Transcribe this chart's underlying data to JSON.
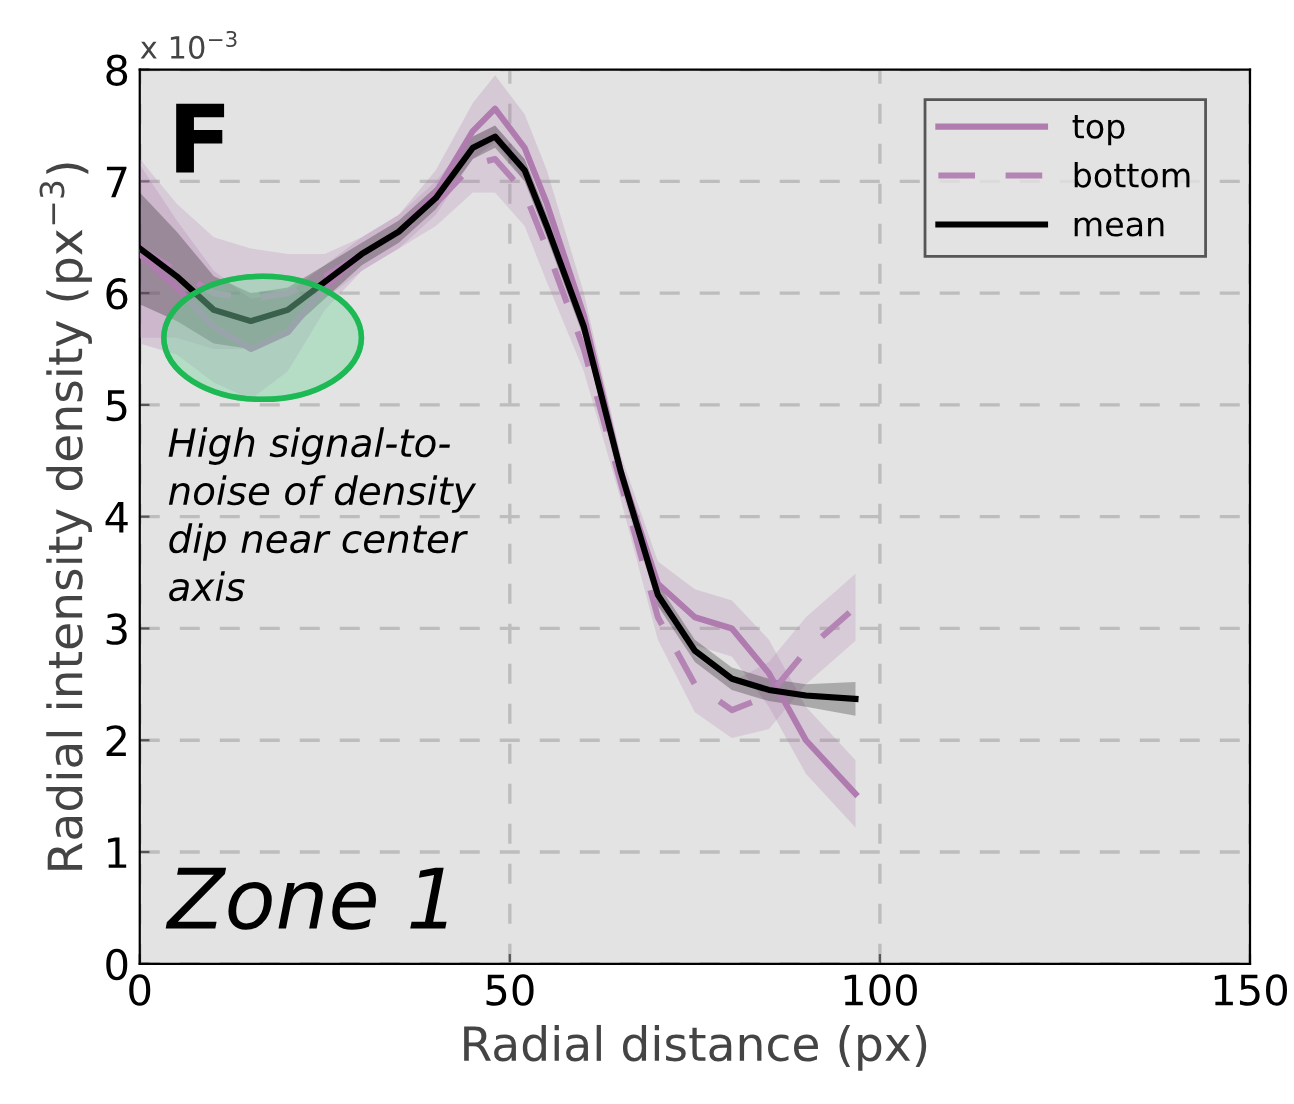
{
  "chart_data": {
    "type": "line",
    "xlabel": "Radial distance (px)",
    "ylabel": "Radial intensity density (px$^{−3}$)",
    "x": [
      0,
      5,
      10,
      15,
      20,
      25,
      30,
      35,
      40,
      45,
      48,
      52,
      55,
      60,
      65,
      70,
      75,
      80,
      85,
      90,
      96.7
    ],
    "xlim": [
      0,
      150
    ],
    "xticks": [
      0,
      50,
      100,
      150
    ],
    "ylim": [
      0,
      8
    ],
    "yticks": [
      0,
      1,
      2,
      3,
      4,
      5,
      6,
      7,
      8
    ],
    "grid": true,
    "legend": "top right",
    "marker": "none",
    "annotations": [
      "F",
      "Zone 1",
      "High signal-to-\nnoise of density\ndip near center\naxis",
      "x 10$^{−3}$"
    ],
    "series": [
      {
        "name": "top",
        "color": "#b07cb0",
        "line_style": "solid",
        "values": [
          6.35,
          6.05,
          5.7,
          5.5,
          5.65,
          6.05,
          6.35,
          6.55,
          6.9,
          7.45,
          7.65,
          7.3,
          6.8,
          5.8,
          4.4,
          3.4,
          3.1,
          3.0,
          2.6,
          2.0,
          1.52
        ],
        "lower": [
          5.55,
          5.45,
          5.2,
          5.05,
          5.3,
          5.85,
          6.2,
          6.4,
          6.7,
          7.2,
          7.35,
          7.0,
          6.5,
          5.6,
          4.25,
          3.2,
          2.85,
          2.75,
          2.3,
          1.7,
          1.22
        ],
        "upper": [
          7.15,
          6.65,
          6.2,
          5.95,
          6.0,
          6.25,
          6.5,
          6.7,
          7.1,
          7.7,
          7.95,
          7.6,
          7.1,
          6.0,
          4.55,
          3.6,
          3.35,
          3.25,
          2.9,
          2.3,
          1.82
        ]
      },
      {
        "name": "bottom",
        "color": "#b484b4",
        "line_style": "dashed",
        "values": [
          6.4,
          6.2,
          6.0,
          5.95,
          6.0,
          6.15,
          6.35,
          6.55,
          6.8,
          7.15,
          7.2,
          6.9,
          6.4,
          5.5,
          4.3,
          3.1,
          2.5,
          2.27,
          2.4,
          2.8,
          3.19
        ],
        "lower": [
          5.6,
          5.6,
          5.5,
          5.5,
          5.65,
          5.95,
          6.2,
          6.4,
          6.6,
          6.9,
          6.9,
          6.6,
          6.1,
          5.3,
          4.15,
          2.9,
          2.25,
          2.02,
          2.1,
          2.5,
          2.89
        ],
        "upper": [
          7.2,
          6.8,
          6.5,
          6.4,
          6.35,
          6.35,
          6.5,
          6.7,
          7.0,
          7.4,
          7.5,
          7.2,
          6.7,
          5.7,
          4.45,
          3.3,
          2.75,
          2.52,
          2.7,
          3.1,
          3.49
        ]
      },
      {
        "name": "mean",
        "color": "#000000",
        "line_style": "solid",
        "values": [
          6.4,
          6.15,
          5.85,
          5.75,
          5.85,
          6.1,
          6.35,
          6.55,
          6.85,
          7.3,
          7.4,
          7.1,
          6.6,
          5.7,
          4.4,
          3.3,
          2.8,
          2.55,
          2.45,
          2.4,
          2.37
        ],
        "lower": [
          5.9,
          5.75,
          5.55,
          5.5,
          5.65,
          5.95,
          6.25,
          6.45,
          6.75,
          7.2,
          7.3,
          7.0,
          6.5,
          5.6,
          4.3,
          3.2,
          2.7,
          2.45,
          2.35,
          2.3,
          2.22
        ],
        "upper": [
          6.9,
          6.55,
          6.15,
          6.0,
          6.05,
          6.25,
          6.45,
          6.65,
          6.95,
          7.4,
          7.5,
          7.2,
          6.7,
          5.8,
          4.5,
          3.4,
          2.9,
          2.65,
          2.55,
          2.5,
          2.52
        ]
      }
    ]
  }
}
